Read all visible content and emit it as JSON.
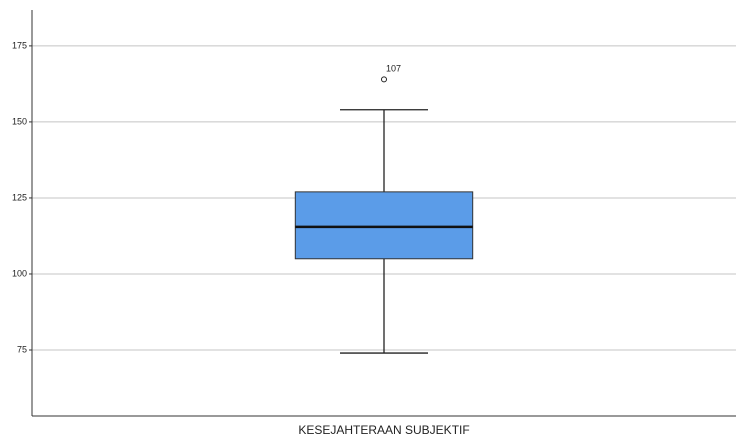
{
  "chart_data": {
    "type": "box",
    "categories": [
      "KESEJAHTERAAN SUBJEKTIF"
    ],
    "boxes": [
      {
        "min": 74,
        "q1": 105,
        "median": 115.5,
        "q3": 127,
        "max": 154,
        "outliers": [
          {
            "value": 164,
            "label": "107"
          }
        ]
      }
    ],
    "color": "#5b9ce8",
    "ylim": [
      53.3,
      186.8
    ],
    "yticks": [
      75,
      100,
      125,
      150,
      175
    ],
    "grid": true
  }
}
